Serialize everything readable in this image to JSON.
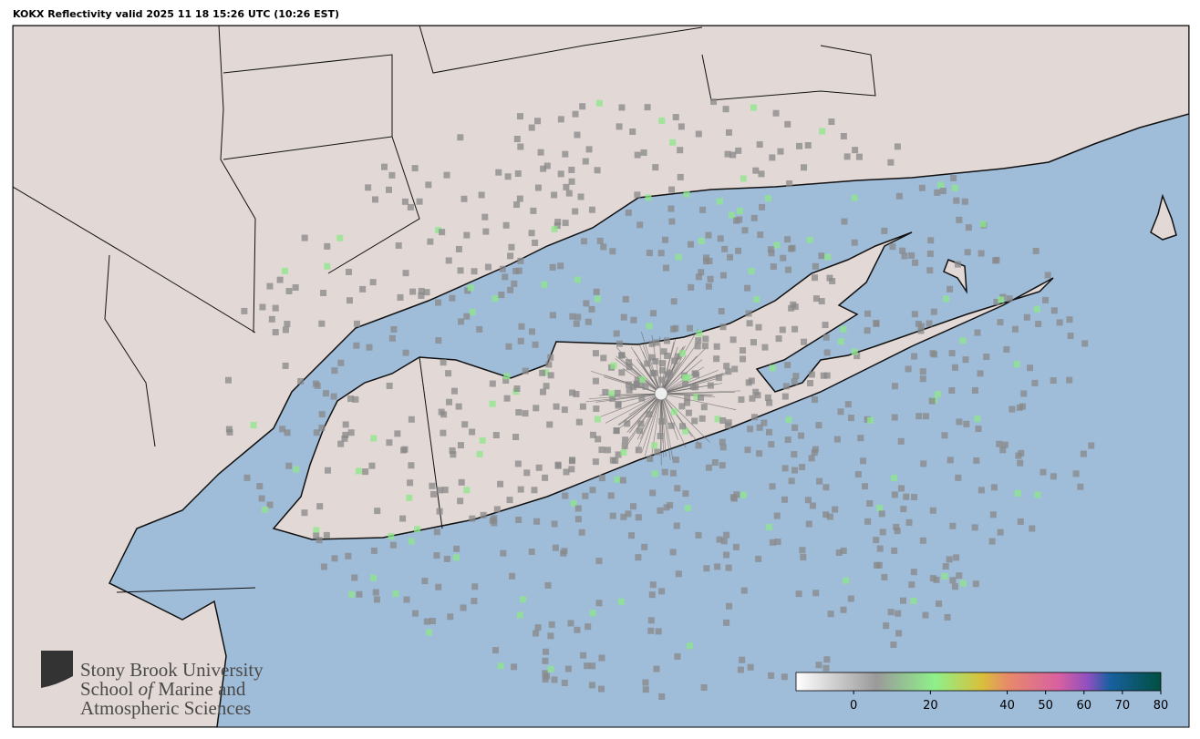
{
  "title": "KOKX Reflectivity valid 2025 11 18 15:26 UTC (10:26 EST)",
  "logo": {
    "line1": "Stony Brook University",
    "line2": [
      "School ",
      "of",
      " Marine and"
    ],
    "line3": "Atmospheric Sciences"
  },
  "colorbar": {
    "lim": [
      -15,
      80
    ],
    "ticks": [
      0,
      20,
      40,
      50,
      60,
      70,
      80
    ]
  }
}
